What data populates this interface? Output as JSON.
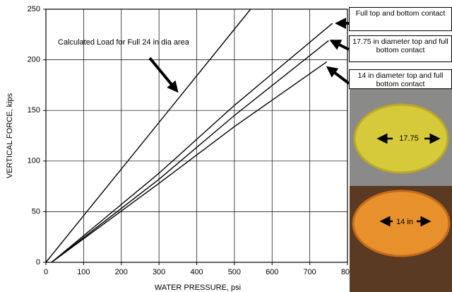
{
  "chart_data": {
    "type": "line",
    "x_label": "WATER PRESSURE,  psi",
    "y_label": "VERTICAL FORCE, kips",
    "annotation": "Calculated Load for Full 24 in dia area",
    "xlim": [
      0,
      800
    ],
    "ylim": [
      0,
      250
    ],
    "xticks": [
      0,
      100,
      200,
      300,
      400,
      500,
      600,
      700,
      800
    ],
    "yticks": [
      0,
      50,
      100,
      150,
      200,
      250
    ],
    "grid": true,
    "series": [
      {
        "name": "Full top and bottom contact",
        "color": "#000000",
        "x": [
          15,
          300,
          500,
          760
        ],
        "values": [
          0,
          88,
          155,
          236
        ]
      },
      {
        "name": "17.75 in diameter top and full bottom contact",
        "color": "#000000",
        "x": [
          15,
          300,
          500,
          750
        ],
        "values": [
          0,
          82,
          145,
          219
        ]
      },
      {
        "name": "14 in diameter top and full bottom contact",
        "color": "#000000",
        "x": [
          15,
          300,
          500,
          745
        ],
        "values": [
          0,
          78,
          134,
          198
        ]
      },
      {
        "name": "Calculated Load",
        "color": "#000000",
        "x": [
          0,
          543
        ],
        "values": [
          0,
          250
        ]
      }
    ],
    "photo_labels": [
      "17.75",
      "14 in"
    ]
  }
}
